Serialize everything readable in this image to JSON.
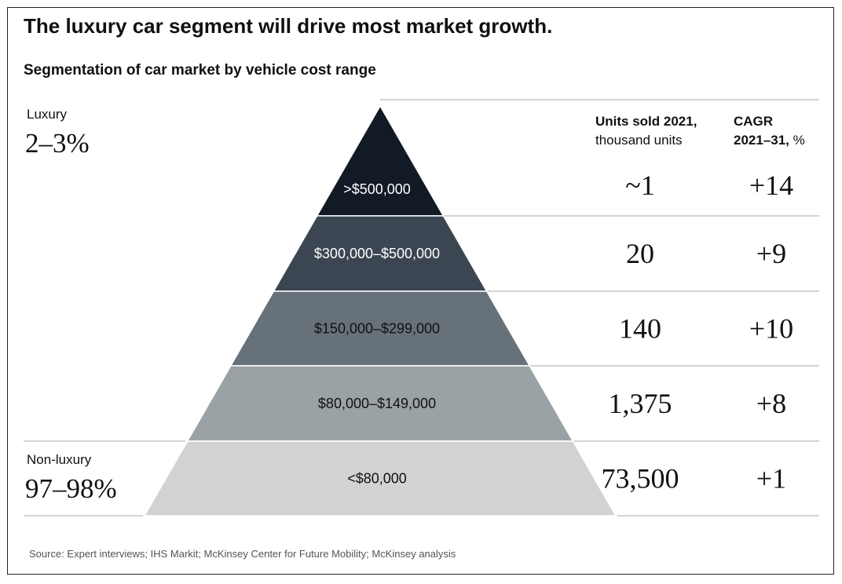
{
  "title": "The luxury car segment will drive most market growth.",
  "subtitle": "Segmentation of car market by vehicle cost range",
  "groups": {
    "luxury": {
      "label": "Luxury",
      "share": "2–3%"
    },
    "non_luxury": {
      "label": "Non-luxury",
      "share": "97–98%"
    }
  },
  "columns": {
    "units_bold": "Units sold 2021,",
    "units_sub": "thousand units",
    "cagr_bold": "CAGR",
    "cagr_bold2": "2021–31,",
    "cagr_unit": " %"
  },
  "source": "Source: Expert interviews; IHS Markit; McKinsey Center for Future Mobility; McKinsey analysis",
  "chart_data": {
    "type": "table",
    "title": "Segmentation of car market by vehicle cost range",
    "categories": [
      ">$500,000",
      "$300,000–$500,000",
      "$150,000–$299,000",
      "$80,000–$149,000",
      "<$80,000"
    ],
    "series": [
      {
        "name": "Units sold 2021, thousand units",
        "values": [
          1,
          20,
          140,
          1375,
          73500
        ],
        "display": [
          "~1",
          "20",
          "140",
          "1,375",
          "73,500"
        ]
      },
      {
        "name": "CAGR 2021–31, %",
        "values": [
          14,
          9,
          10,
          8,
          1
        ],
        "display": [
          "+14",
          "+9",
          "+10",
          "+8",
          "+1"
        ]
      }
    ],
    "colors": [
      "#121a26",
      "#3b4652",
      "#66717a",
      "#9aa2a6",
      "#d2d2d2"
    ],
    "label_colors": [
      "#ffffff",
      "#ffffff",
      "#111111",
      "#111111",
      "#111111"
    ],
    "line_color": "#bbbbbb"
  }
}
